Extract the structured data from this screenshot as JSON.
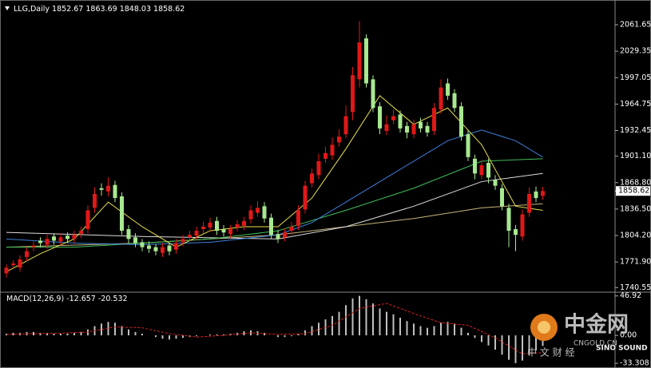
{
  "chart_data": [
    {
      "type": "candlestick",
      "symbol": "LLG,Daily",
      "ylim": [
        1736,
        2087
      ],
      "yticks": [
        2061.65,
        2029.35,
        1997.05,
        1964.75,
        1932.45,
        {
          "value": 1901.1,
          "label": "1901.10"
        },
        {
          "value": 1868.8,
          "label": "1868.80"
        },
        {
          "value": 1836.5,
          "label": "1836.50"
        },
        {
          "value": 1804.2,
          "label": "1804.20"
        },
        {
          "value": 1771.9,
          "label": "1771.90"
        },
        1740.55
      ],
      "up_color": "#e01818",
      "down_color": "#a8e890",
      "open": [
        1758,
        1768,
        1765,
        1778,
        1790,
        1798,
        1793,
        1803,
        1797,
        1804,
        1800,
        1806,
        1812,
        1838,
        1862,
        1858,
        1866,
        1852,
        1812,
        1802,
        1796,
        1792,
        1790,
        1783,
        1792,
        1787,
        1796,
        1802,
        1804,
        1812,
        1814,
        1822,
        1812,
        1806,
        1814,
        1816,
        1824,
        1832,
        1840,
        1826,
        1806,
        1802,
        1810,
        1816,
        1836,
        1868,
        1878,
        1898,
        1902,
        1918,
        1928,
        1955,
        1995,
        2045,
        1995,
        1962,
        1932,
        1945,
        1952,
        1938,
        1928,
        1943,
        1938,
        1932,
        1958,
        1990,
        1978,
        1962,
        1928,
        1898,
        1878,
        1893,
        1872,
        1862,
        1838,
        1812,
        1803,
        1832,
        1858,
        1852.67
      ],
      "high": [
        1769,
        1774,
        1780,
        1790,
        1797,
        1802,
        1805,
        1807,
        1807,
        1808,
        1810,
        1815,
        1841,
        1863,
        1868,
        1875,
        1871,
        1857,
        1817,
        1807,
        1800,
        1797,
        1794,
        1795,
        1796,
        1800,
        1805,
        1810,
        1815,
        1821,
        1826,
        1827,
        1817,
        1817,
        1823,
        1827,
        1841,
        1846,
        1845,
        1831,
        1811,
        1813,
        1821,
        1841,
        1871,
        1886,
        1904,
        1913,
        1924,
        1934,
        1963,
        2010,
        2066,
        2050,
        2000,
        1967,
        1951,
        1958,
        1957,
        1943,
        1946,
        1948,
        1943,
        1966,
        1995,
        1996,
        1983,
        1967,
        1933,
        1903,
        1896,
        1898,
        1878,
        1867,
        1843,
        1817,
        1836,
        1863,
        1864,
        1863.69
      ],
      "low": [
        1753,
        1763,
        1760,
        1773,
        1785,
        1790,
        1788,
        1793,
        1792,
        1795,
        1795,
        1801,
        1807,
        1832,
        1853,
        1852,
        1845,
        1805,
        1795,
        1790,
        1785,
        1783,
        1780,
        1778,
        1780,
        1782,
        1791,
        1797,
        1799,
        1807,
        1809,
        1805,
        1803,
        1801,
        1809,
        1811,
        1819,
        1827,
        1820,
        1800,
        1795,
        1797,
        1805,
        1811,
        1831,
        1863,
        1873,
        1893,
        1897,
        1913,
        1923,
        1945,
        1985,
        1985,
        1955,
        1928,
        1927,
        1940,
        1930,
        1923,
        1923,
        1930,
        1925,
        1927,
        1953,
        1970,
        1955,
        1920,
        1895,
        1873,
        1873,
        1868,
        1860,
        1835,
        1790,
        1785,
        1798,
        1827,
        1845,
        1848.03
      ],
      "close": [
        1765,
        1770,
        1775,
        1785,
        1792,
        1795,
        1800,
        1798,
        1802,
        1800,
        1805,
        1810,
        1835,
        1855,
        1860,
        1865,
        1850,
        1810,
        1800,
        1795,
        1790,
        1788,
        1785,
        1790,
        1785,
        1795,
        1800,
        1805,
        1810,
        1815,
        1820,
        1810,
        1808,
        1812,
        1818,
        1822,
        1835,
        1838,
        1825,
        1805,
        1800,
        1808,
        1815,
        1835,
        1865,
        1880,
        1895,
        1905,
        1915,
        1925,
        1950,
        2000,
        2040,
        1990,
        1960,
        1935,
        1940,
        1950,
        1935,
        1930,
        1940,
        1935,
        1930,
        1960,
        1985,
        1975,
        1960,
        1925,
        1900,
        1880,
        1890,
        1875,
        1865,
        1840,
        1810,
        1805,
        1830,
        1855,
        1850,
        1858.62
      ],
      "lines": [
        {
          "color": "#c9b47a",
          "x": [
            0,
            20,
            40,
            60,
            70,
            79
          ],
          "values": [
            1790,
            1795,
            1805,
            1825,
            1838,
            1843
          ]
        },
        {
          "color": "#dddddd",
          "x": [
            0,
            20,
            40,
            50,
            60,
            70,
            79
          ],
          "values": [
            1808,
            1803,
            1800,
            1815,
            1840,
            1870,
            1880
          ]
        },
        {
          "color": "#3fbf5a",
          "x": [
            0,
            10,
            20,
            30,
            40,
            50,
            60,
            70,
            79
          ],
          "values": [
            1790,
            1790,
            1795,
            1800,
            1810,
            1835,
            1862,
            1895,
            1898
          ]
        },
        {
          "color": "#3d7fd9",
          "x": [
            0,
            10,
            20,
            30,
            40,
            45,
            50,
            55,
            60,
            65,
            70,
            75,
            79
          ],
          "values": [
            1800,
            1795,
            1793,
            1796,
            1805,
            1820,
            1845,
            1870,
            1895,
            1920,
            1933,
            1920,
            1900
          ]
        },
        {
          "color": "#e8e04a",
          "x": [
            0,
            5,
            10,
            15,
            20,
            25,
            30,
            35,
            40,
            45,
            50,
            55,
            60,
            65,
            70,
            75,
            79
          ],
          "values": [
            1760,
            1782,
            1800,
            1845,
            1815,
            1790,
            1810,
            1815,
            1815,
            1850,
            1910,
            1975,
            1940,
            1960,
            1915,
            1840,
            1835
          ]
        }
      ]
    },
    {
      "type": "macd",
      "label": "MACD(12,26,9)",
      "ylim": [
        -36,
        49.5
      ],
      "yticks": [
        46.92,
        {
          "value": 0,
          "label": "0.00"
        },
        -33.308
      ],
      "hist_color": "#c0c0c0",
      "signal_color": "#e02020",
      "values": [
        2,
        3,
        3,
        4,
        4,
        3,
        3,
        2,
        2,
        2,
        3,
        4,
        7,
        11,
        14,
        16,
        15,
        11,
        7,
        4,
        2,
        0,
        -2,
        -4,
        -5,
        -4,
        -3,
        -2,
        -1,
        0,
        1,
        1,
        1,
        2,
        3,
        5,
        6,
        5,
        3,
        0,
        -2,
        -2,
        -1,
        2,
        6,
        11,
        15,
        19,
        23,
        28,
        36,
        44,
        47,
        43,
        38,
        32,
        28,
        25,
        21,
        17,
        14,
        11,
        9,
        11,
        15,
        16,
        14,
        9,
        3,
        -3,
        -8,
        -12,
        -17,
        -23,
        -29,
        -33,
        -30,
        -24,
        -18,
        -12.657
      ],
      "signal": {
        "x": [
          0,
          4,
          8,
          12,
          16,
          20,
          24,
          28,
          32,
          36,
          40,
          44,
          48,
          52,
          56,
          60,
          64,
          68,
          72,
          76,
          79
        ],
        "values": [
          1,
          2,
          2.5,
          4,
          10,
          9,
          2,
          -2,
          0,
          3,
          1,
          2,
          12,
          32,
          38,
          26,
          15,
          12,
          -3,
          -22,
          -20.532
        ]
      }
    }
  ],
  "watermark": {
    "name": "中金网",
    "site": "CNGOLD.CN",
    "tagline": "中 文 财 经",
    "brand": "SINO SOUND"
  }
}
